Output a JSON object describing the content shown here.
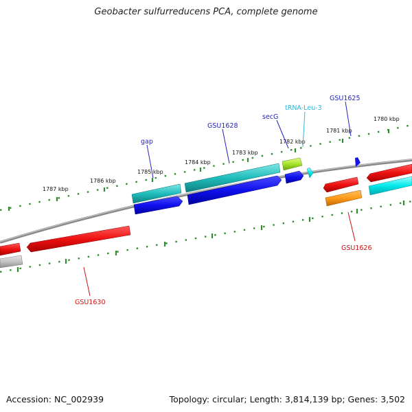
{
  "title": "Geobacter sulfurreducens PCA, complete genome",
  "footer": {
    "accession": "Accession: NC_002939",
    "summary": "Topology: circular; Length: 3,814,139 bp; Genes: 3,502"
  },
  "colors": {
    "backbone": "#8a8a8a",
    "tick": "#2e8b2e",
    "label_blue": "#1f1fbf",
    "label_cyan": "#29b6d6",
    "label_red": "#cc1111"
  },
  "kbp_labels": [
    "1787 kbp",
    "1786 kbp",
    "1785 kbp",
    "1784 kbp",
    "1783 kbp",
    "1782 kbp",
    "1781 kbp",
    "1780 kbp"
  ],
  "gene_labels": {
    "gap": "gap",
    "gsu1628": "GSU1628",
    "secg": "secG",
    "trna": "tRNA-Leu-3",
    "gsu1625": "GSU1625",
    "gsu1626": "GSU1626",
    "gsu1630": "GSU1630"
  }
}
